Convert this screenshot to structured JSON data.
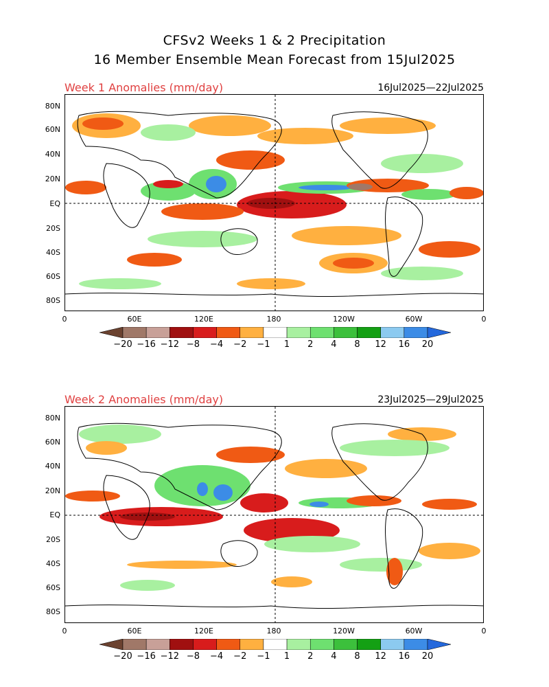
{
  "figure": {
    "title_line1": "CFSv2 Weeks 1 & 2 Precipitation",
    "title_line2": "16 Member Ensemble Mean Forecast from 15Jul2025"
  },
  "panels": [
    {
      "label": "Week 1 Anomalies (mm/day)",
      "dates": "16Jul2025—22Jul2025",
      "y_ticks": [
        "80N",
        "60N",
        "40N",
        "20N",
        "EQ",
        "20S",
        "40S",
        "60S",
        "80S"
      ],
      "x_ticks": [
        "0",
        "60E",
        "120E",
        "180",
        "120W",
        "60W",
        "0"
      ]
    },
    {
      "label": "Week 2 Anomalies (mm/day)",
      "dates": "23Jul2025—29Jul2025",
      "y_ticks": [
        "80N",
        "60N",
        "40N",
        "20N",
        "EQ",
        "20S",
        "40S",
        "60S",
        "80S"
      ],
      "x_ticks": [
        "0",
        "60E",
        "120E",
        "180",
        "120W",
        "60W",
        "0"
      ]
    }
  ],
  "colorbar": {
    "labels": [
      "−20",
      "−16",
      "−12",
      "−8",
      "−4",
      "−2",
      "−1",
      "1",
      "2",
      "4",
      "8",
      "12",
      "16",
      "20"
    ],
    "colors": [
      "#6b4230",
      "#a07868",
      "#c8a098",
      "#a01010",
      "#d81c1c",
      "#f05a14",
      "#ffb040",
      "#ffffff",
      "#a8f0a0",
      "#6ee070",
      "#3cc03c",
      "#14a014",
      "#8ccaf0",
      "#3c8ce6",
      "#2468dc"
    ]
  },
  "map_colors": {
    "dry_light": "#ffb040",
    "dry_mid": "#f05a14",
    "dry_strong": "#d81c1c",
    "dry_extreme": "#a01010",
    "dry_brown": "#a07868",
    "wet_light": "#a8f0a0",
    "wet_mid": "#6ee070",
    "wet_strong": "#3cc03c",
    "wet_blue": "#3c8ce6",
    "wet_lightblue": "#8ccaf0"
  }
}
